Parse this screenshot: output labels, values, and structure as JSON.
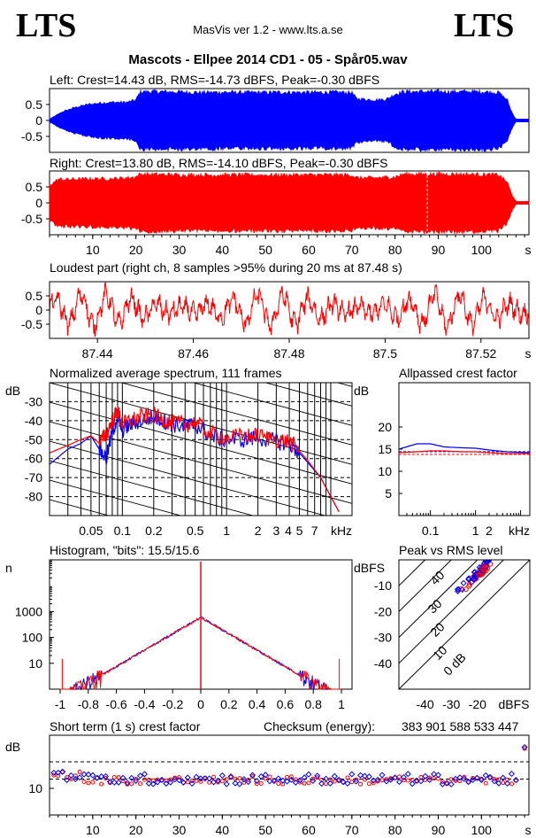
{
  "header": {
    "logo_left": "LTS",
    "logo_right": "LTS",
    "version": "MasVis ver 1.2 - www.lts.a.se",
    "file_title": "Mascots - Ellpee 2014 CD1 - 05 - Spår05.wav"
  },
  "colors": {
    "left": "#0000ff",
    "right": "#ff0000",
    "grid": "#000000"
  },
  "chart_data": [
    {
      "id": "left_waveform",
      "type": "area",
      "title": "Left: Crest=14.43 dB, RMS=-14.73 dBFS, Peak=-0.30 dBFS",
      "ylim": [
        -1,
        1
      ],
      "y_ticks": [
        "0.5",
        "0",
        "-0.5"
      ],
      "xlim": [
        0,
        111
      ],
      "envelope": [
        [
          0,
          0.05
        ],
        [
          3,
          0.3
        ],
        [
          6,
          0.45
        ],
        [
          9,
          0.55
        ],
        [
          12,
          0.6
        ],
        [
          15,
          0.62
        ],
        [
          18,
          0.62
        ],
        [
          20,
          0.7
        ],
        [
          21,
          0.98
        ],
        [
          25,
          0.98
        ],
        [
          30,
          0.97
        ],
        [
          35,
          0.95
        ],
        [
          40,
          0.96
        ],
        [
          45,
          0.95
        ],
        [
          50,
          0.95
        ],
        [
          55,
          0.96
        ],
        [
          60,
          0.95
        ],
        [
          65,
          0.96
        ],
        [
          70,
          0.95
        ],
        [
          71,
          0.75
        ],
        [
          73,
          0.72
        ],
        [
          75,
          0.7
        ],
        [
          78,
          0.72
        ],
        [
          80,
          0.9
        ],
        [
          82,
          0.98
        ],
        [
          90,
          0.98
        ],
        [
          100,
          0.98
        ],
        [
          104,
          0.95
        ],
        [
          106,
          0.7
        ],
        [
          107,
          0.3
        ],
        [
          108,
          0.05
        ]
      ]
    },
    {
      "id": "right_waveform",
      "type": "area",
      "title": "Right: Crest=13.80 dB, RMS=-14.10 dBFS, Peak=-0.30 dBFS",
      "ylim": [
        -1,
        1
      ],
      "y_ticks": [
        "0.5",
        "0",
        "-0.5"
      ],
      "xlim": [
        0,
        111
      ],
      "x_ticks": [
        "10",
        "20",
        "30",
        "40",
        "50",
        "60",
        "70",
        "80",
        "90",
        "100",
        "s"
      ],
      "envelope": [
        [
          0,
          0.6
        ],
        [
          2,
          0.8
        ],
        [
          5,
          0.8
        ],
        [
          10,
          0.82
        ],
        [
          15,
          0.82
        ],
        [
          20,
          0.88
        ],
        [
          21,
          0.98
        ],
        [
          30,
          0.95
        ],
        [
          40,
          0.95
        ],
        [
          50,
          0.95
        ],
        [
          60,
          0.95
        ],
        [
          70,
          0.95
        ],
        [
          71,
          0.85
        ],
        [
          75,
          0.85
        ],
        [
          80,
          0.88
        ],
        [
          82,
          0.98
        ],
        [
          95,
          0.98
        ],
        [
          104,
          0.95
        ],
        [
          106,
          0.7
        ],
        [
          107,
          0.3
        ],
        [
          108,
          0.05
        ]
      ],
      "marker_x": 87.48
    },
    {
      "id": "loudest_part",
      "type": "line",
      "title": "Loudest part (right ch, 8 samples >95% during 20 ms at 87.48 s)",
      "xlim": [
        87.43,
        87.53
      ],
      "ylim": [
        -1,
        1
      ],
      "x_ticks": [
        "87.44",
        "87.46",
        "87.48",
        "87.5",
        "87.52",
        "s"
      ],
      "y_ticks": [
        "0.5",
        "0",
        "-0.5"
      ]
    },
    {
      "id": "spectrum",
      "type": "line",
      "title": "Normalized average spectrum, 111 frames",
      "ylabel": "dB",
      "x_unit": "kHz",
      "y_ticks": [
        "-30",
        "-40",
        "-50",
        "-60",
        "-70",
        "-80"
      ],
      "x_ticks": [
        "0.05",
        "0.1",
        "0.2",
        "0.5",
        "1",
        "2",
        "3",
        "4",
        "5",
        "7"
      ],
      "left": [
        [
          0.02,
          -63
        ],
        [
          0.03,
          -55
        ],
        [
          0.04,
          -52
        ],
        [
          0.05,
          -48
        ],
        [
          0.06,
          -55
        ],
        [
          0.07,
          -60
        ],
        [
          0.08,
          -46
        ],
        [
          0.09,
          -38
        ],
        [
          0.1,
          -45
        ],
        [
          0.12,
          -42
        ],
        [
          0.15,
          -40
        ],
        [
          0.2,
          -38
        ],
        [
          0.25,
          -40
        ],
        [
          0.3,
          -42
        ],
        [
          0.4,
          -43
        ],
        [
          0.5,
          -42
        ],
        [
          0.7,
          -48
        ],
        [
          1,
          -50
        ],
        [
          1.5,
          -50
        ],
        [
          2,
          -49
        ],
        [
          3,
          -51
        ],
        [
          4,
          -52
        ],
        [
          5,
          -57
        ],
        [
          6,
          -62
        ],
        [
          8,
          -70
        ],
        [
          10,
          -80
        ],
        [
          12,
          -88
        ]
      ],
      "right": [
        [
          0.02,
          -57
        ],
        [
          0.03,
          -53
        ],
        [
          0.04,
          -50
        ],
        [
          0.05,
          -48
        ],
        [
          0.06,
          -52
        ],
        [
          0.07,
          -47
        ],
        [
          0.08,
          -40
        ],
        [
          0.09,
          -35
        ],
        [
          0.1,
          -42
        ],
        [
          0.12,
          -40
        ],
        [
          0.15,
          -38
        ],
        [
          0.2,
          -37
        ],
        [
          0.25,
          -40
        ],
        [
          0.3,
          -41
        ],
        [
          0.4,
          -42
        ],
        [
          0.5,
          -41
        ],
        [
          0.7,
          -47
        ],
        [
          1,
          -49
        ],
        [
          1.5,
          -48
        ],
        [
          2,
          -48
        ],
        [
          3,
          -50
        ],
        [
          4,
          -51
        ],
        [
          5,
          -56
        ],
        [
          6,
          -61
        ],
        [
          8,
          -70
        ],
        [
          10,
          -80
        ],
        [
          12,
          -88
        ]
      ]
    },
    {
      "id": "allpassed_crest",
      "type": "line",
      "title": "Allpassed crest factor",
      "ylabel": "dB",
      "x_unit": "kHz",
      "y_ticks": [
        "20",
        "15",
        "10",
        "5"
      ],
      "x_ticks": [
        "0.1",
        "1",
        "2"
      ],
      "left": [
        [
          0.02,
          15.0
        ],
        [
          0.05,
          16.2
        ],
        [
          0.1,
          16.2
        ],
        [
          0.2,
          15.5
        ],
        [
          0.5,
          15.3
        ],
        [
          1,
          15.2
        ],
        [
          2,
          14.8
        ],
        [
          5,
          14.4
        ],
        [
          16,
          14.2
        ]
      ],
      "right": [
        [
          0.02,
          14.2
        ],
        [
          0.05,
          14.4
        ],
        [
          0.1,
          14.6
        ],
        [
          0.2,
          14.6
        ],
        [
          0.5,
          14.4
        ],
        [
          1,
          14.4
        ],
        [
          2,
          14.2
        ],
        [
          5,
          14.0
        ],
        [
          16,
          14.0
        ]
      ],
      "left_ref": 14.43,
      "right_ref": 13.8
    },
    {
      "id": "histogram",
      "type": "line",
      "title": "Histogram, \"bits\": 15.5/15.6",
      "ylabel": "n",
      "x_ticks": [
        "-1",
        "-0.8",
        "-0.6",
        "-0.4",
        "-0.2",
        "0",
        "0.2",
        "0.4",
        "0.6",
        "0.8",
        "1"
      ],
      "y_ticks": [
        "1000",
        "100",
        "10"
      ]
    },
    {
      "id": "peak_vs_rms",
      "type": "scatter",
      "title": "Peak vs RMS level",
      "xlabel": "dBFS",
      "ylabel": "dBFS",
      "x_ticks": [
        "-40",
        "-30",
        "-20"
      ],
      "y_ticks": [
        "-10",
        "-20",
        "-30",
        "-40"
      ],
      "diag_labels": [
        "40",
        "30",
        "20",
        "10",
        "0 dB"
      ]
    },
    {
      "id": "short_term_crest",
      "type": "scatter",
      "title": "Short term (1 s) crest factor",
      "checksum_label": "Checksum (energy):",
      "checksum_value": "383 901 588 533 447",
      "ylabel": "dB",
      "y_ticks": [
        "10"
      ],
      "x_ticks": [
        "10",
        "20",
        "30",
        "40",
        "50",
        "60",
        "70",
        "80",
        "90",
        "100",
        "s"
      ]
    }
  ]
}
